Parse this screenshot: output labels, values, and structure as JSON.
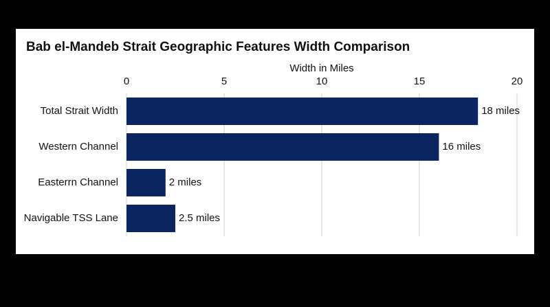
{
  "chart_data": {
    "type": "bar",
    "orientation": "horizontal",
    "title": "Bab el-Mandeb Strait Geographic Features Width Comparison",
    "x_label": "Width in Miles",
    "categories": [
      "Total Strait Width",
      "Western Channel",
      "Easterrn Channel",
      "Navigable TSS Lane"
    ],
    "values": [
      18,
      16,
      2,
      2.5
    ],
    "value_labels": [
      "18 miles",
      "16 miles",
      "2 miles",
      "2.5 miles"
    ],
    "color": "#0b2560",
    "xlim": [
      0,
      20
    ],
    "xticks": [
      0,
      5,
      10,
      15,
      20
    ],
    "grid": true
  }
}
